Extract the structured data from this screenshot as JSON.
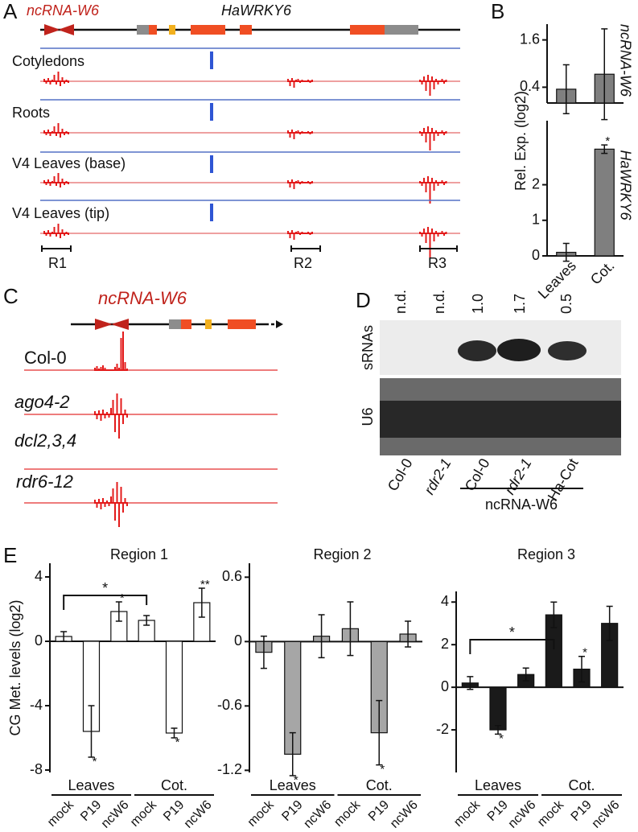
{
  "panel_labels": [
    "A",
    "B",
    "C",
    "D",
    "E"
  ],
  "panel_a": {
    "gene_labels": [
      "ncRNA-W6",
      "HaWRKY6"
    ],
    "tracks": [
      "Cotyledons",
      "Roots",
      "V4 Leaves (base)",
      "V4 Leaves (tip)"
    ],
    "regions": [
      "R1",
      "R2",
      "R3"
    ]
  },
  "panel_b": {
    "ylabel": "Rel. Exp. (log2)"
  },
  "panel_c": {
    "gene_label": "ncRNA-W6",
    "tracks": [
      "Col-0",
      "ago4-2",
      "dcl2,3,4",
      "rdr6-12"
    ]
  },
  "panel_d": {
    "row_labels": [
      "sRNAs",
      "U6"
    ],
    "lane_values": [
      "n.d.",
      "n.d.",
      "1.0",
      "1.7",
      "0.5"
    ],
    "lanes": [
      "Col-0",
      "rdr2-1",
      "Col-0",
      "rdr2-1",
      "Ha-Cot"
    ],
    "group_label": "ncRNA-W6"
  },
  "panel_e": {
    "ylabel": "CG Met. levels (log2)"
  },
  "chart_data": [
    {
      "type": "bar",
      "ylabel": "ncRNA-W6",
      "values": [
        0.35,
        0.73
      ],
      "errors": [
        0.62,
        1.15
      ],
      "color": "#7f7f7f",
      "ylim": [
        0,
        2.0
      ],
      "yticks": [
        0.4,
        1.6
      ]
    },
    {
      "type": "bar",
      "ylabel": "HaWRKY6",
      "categories": [
        "Leaves",
        "Cot."
      ],
      "values": [
        0.1,
        3.0
      ],
      "errors": [
        0.25,
        0.12
      ],
      "significance": [
        null,
        "*"
      ],
      "color": "#7f7f7f",
      "ylim": [
        0,
        3.8
      ],
      "yticks": [
        0,
        1,
        2
      ]
    },
    {
      "type": "bar",
      "title": "Region 1",
      "categories": [
        "mock",
        "P19",
        "ncW6",
        "mock",
        "P19",
        "ncW6"
      ],
      "groups": [
        "Leaves",
        "Cot."
      ],
      "values": [
        0.3,
        -5.6,
        1.85,
        1.3,
        -5.7,
        2.4
      ],
      "errors": [
        0.3,
        1.6,
        0.6,
        0.3,
        0.3,
        0.9
      ],
      "significance": [
        null,
        "*",
        "*",
        null,
        "*",
        "**"
      ],
      "bracket_label": "*",
      "color": "#ffffff",
      "ylim": [
        -8.15,
        4.85
      ],
      "yticks": [
        -8,
        -4,
        0,
        4
      ]
    },
    {
      "type": "bar",
      "title": "Region 2",
      "categories": [
        "mock",
        "P19",
        "ncW6",
        "mock",
        "P19",
        "ncW6"
      ],
      "groups": [
        "Leaves",
        "Cot."
      ],
      "values": [
        -0.1,
        -1.05,
        0.05,
        0.12,
        -0.85,
        0.07
      ],
      "errors": [
        0.15,
        0.2,
        0.2,
        0.25,
        0.3,
        0.12
      ],
      "significance": [
        null,
        "*",
        null,
        null,
        "*",
        null
      ],
      "color": "#a6a6a6",
      "ylim": [
        -1.22,
        0.73
      ],
      "yticks": [
        -1.2,
        -0.6,
        0,
        0.6
      ]
    },
    {
      "type": "bar",
      "title": "Region 3",
      "categories": [
        "mock",
        "P19",
        "ncW6",
        "mock",
        "P19",
        "ncW6"
      ],
      "groups": [
        "Leaves",
        "Cot."
      ],
      "values": [
        0.2,
        -2.0,
        0.6,
        3.4,
        0.85,
        3.0
      ],
      "errors": [
        0.3,
        0.2,
        0.3,
        0.6,
        0.6,
        0.8
      ],
      "significance": [
        null,
        "*",
        null,
        null,
        "*",
        null
      ],
      "bracket_label": "*",
      "color": "#1a1a1a",
      "ylim": [
        -4.0,
        4.5
      ],
      "yticks": [
        -2,
        0,
        2,
        4
      ]
    }
  ]
}
